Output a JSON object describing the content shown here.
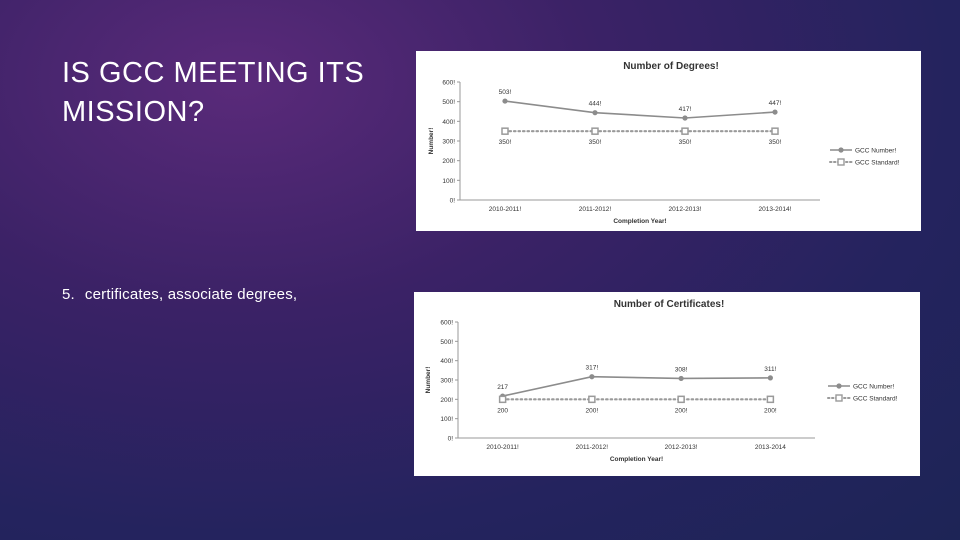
{
  "slide": {
    "title": "IS GCC MEETING ITS MISSION?",
    "bullet_number": "5.",
    "bullet_text": "certificates, associate degrees,"
  },
  "chart_data": [
    {
      "type": "line",
      "title": "Number of Degrees!",
      "xlabel": "Completion Year!",
      "ylabel": "Number!",
      "categories": [
        "2010-2011!",
        "2011-2012!",
        "2012-2013!",
        "2013-2014!"
      ],
      "yticks": [
        "0!",
        "100!",
        "200!",
        "300!",
        "400!",
        "500!",
        "600!"
      ],
      "ylim": [
        0,
        600
      ],
      "grid": false,
      "legend": "right",
      "series": [
        {
          "name": "GCC Number!",
          "values": [
            503,
            444,
            417,
            447
          ],
          "labels": [
            "503!",
            "444!",
            "417!",
            "447!"
          ],
          "color": "#8c8c8c",
          "style": "solid"
        },
        {
          "name": "GCC Standard!",
          "values": [
            350,
            350,
            350,
            350
          ],
          "labels": [
            "350!",
            "350!",
            "350!",
            "350!"
          ],
          "color": "#9a9a9a",
          "style": "dotted"
        }
      ]
    },
    {
      "type": "line",
      "title": "Number of Certificates!",
      "xlabel": "Completion Year!",
      "ylabel": "Number!",
      "categories": [
        "2010-2011!",
        "2011-2012!",
        "2012-2013!",
        "2013-2014"
      ],
      "yticks": [
        "0!",
        "100!",
        "200!",
        "300!",
        "400!",
        "500!",
        "600!"
      ],
      "ylim": [
        0,
        600
      ],
      "grid": false,
      "legend": "right",
      "series": [
        {
          "name": "GCC Number!",
          "values": [
            217,
            317,
            308,
            311
          ],
          "labels": [
            "217",
            "317!",
            "308!",
            "311!"
          ],
          "color": "#8c8c8c",
          "style": "solid"
        },
        {
          "name": "GCC Standard!",
          "values": [
            200,
            200,
            200,
            200
          ],
          "labels": [
            "200",
            "200!",
            "200!",
            "200!"
          ],
          "color": "#9a9a9a",
          "style": "dotted"
        }
      ]
    }
  ]
}
